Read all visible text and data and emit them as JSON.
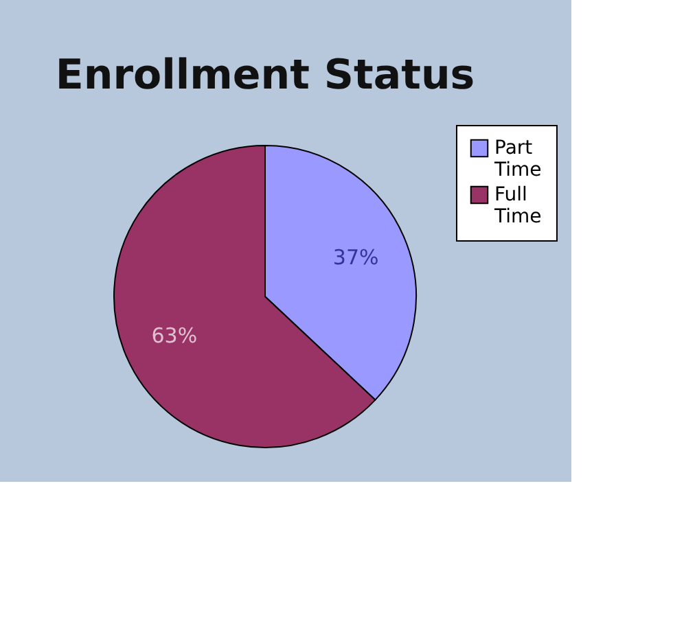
{
  "chart_data": {
    "type": "pie",
    "title": "Enrollment Status",
    "categories": [
      "Part Time",
      "Full Time"
    ],
    "values": [
      37,
      63
    ],
    "colors": [
      "#9999ff",
      "#993366"
    ],
    "value_labels": [
      "37%",
      "63%"
    ],
    "legend": "right"
  }
}
